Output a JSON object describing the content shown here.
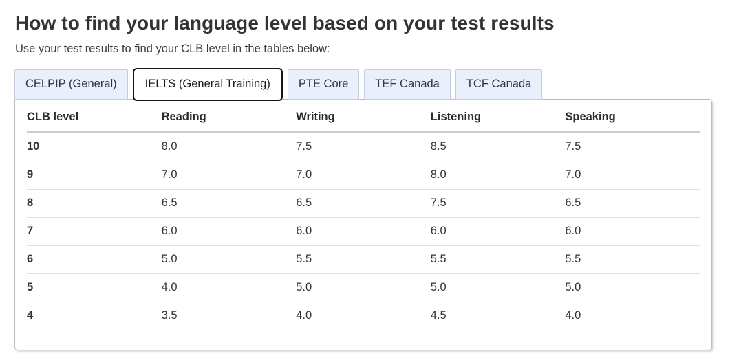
{
  "page": {
    "title": "How to find your language level based on your test results",
    "subtitle": "Use your test results to find your CLB level in the tables below:"
  },
  "tabs": [
    {
      "label": "CELPIP (General)",
      "active": false
    },
    {
      "label": "IELTS (General Training)",
      "active": true
    },
    {
      "label": "PTE Core",
      "active": false
    },
    {
      "label": "TEF Canada",
      "active": false
    },
    {
      "label": "TCF Canada",
      "active": false
    }
  ],
  "table": {
    "headers": [
      "CLB level",
      "Reading",
      "Writing",
      "Listening",
      "Speaking"
    ],
    "rows": [
      {
        "level": "10",
        "values": [
          "8.0",
          "7.5",
          "8.5",
          "7.5"
        ]
      },
      {
        "level": "9",
        "values": [
          "7.0",
          "7.0",
          "8.0",
          "7.0"
        ]
      },
      {
        "level": "8",
        "values": [
          "6.5",
          "6.5",
          "7.5",
          "6.5"
        ]
      },
      {
        "level": "7",
        "values": [
          "6.0",
          "6.0",
          "6.0",
          "6.0"
        ]
      },
      {
        "level": "6",
        "values": [
          "5.0",
          "5.5",
          "5.5",
          "5.5"
        ]
      },
      {
        "level": "5",
        "values": [
          "4.0",
          "5.0",
          "5.0",
          "5.0"
        ]
      },
      {
        "level": "4",
        "values": [
          "3.5",
          "4.0",
          "4.5",
          "4.0"
        ]
      }
    ]
  },
  "colors": {
    "heading_text": "#333333",
    "body_text": "#333333",
    "tab_inactive_bg": "#eaf0fb",
    "tab_inactive_border": "#c6cedd",
    "tab_text": "#26374a",
    "active_tab_bg": "#ffffff",
    "active_tab_border": "#161616",
    "panel_border": "#bdbdbd",
    "header_rule": "#cccccc",
    "row_rule": "#e0e0e0"
  }
}
